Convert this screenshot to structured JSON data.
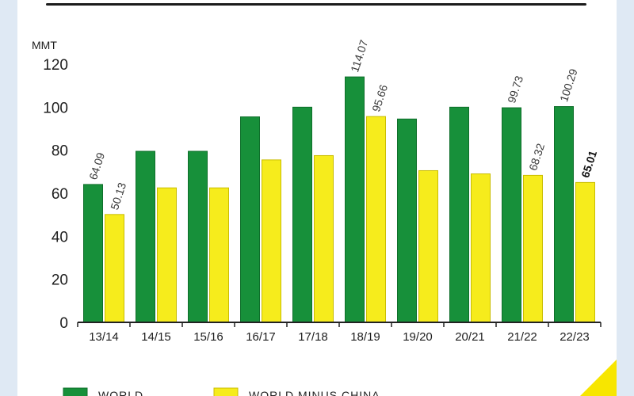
{
  "colors": {
    "series_green": "#17903a",
    "series_green_edge": "#0e6e2a",
    "series_yellow": "#f6ec1c",
    "series_yellow_edge": "#c9bd00",
    "axis": "#222222",
    "page_bg": "#dfe9f4",
    "accent_corner": "#f7e600"
  },
  "chart_data": {
    "type": "bar",
    "ylabel": "MMT",
    "ylim": [
      0,
      120
    ],
    "yticks": [
      0,
      20,
      40,
      60,
      80,
      100,
      120
    ],
    "categories": [
      "13/14",
      "14/15",
      "15/16",
      "16/17",
      "17/18",
      "18/19",
      "19/20",
      "20/21",
      "21/22",
      "22/23"
    ],
    "series": [
      {
        "values": [
          64.09,
          79.5,
          79.5,
          95.5,
          100.0,
          114.07,
          94.5,
          100.0,
          99.73,
          100.29
        ],
        "labels": [
          "64.09",
          "",
          "",
          "",
          "",
          "114.07",
          "",
          "",
          "99.73",
          "100.29"
        ]
      },
      {
        "values": [
          50.13,
          62.5,
          62.5,
          75.5,
          77.5,
          95.66,
          70.5,
          69.0,
          68.32,
          65.01
        ],
        "labels": [
          "50.13",
          "",
          "",
          "",
          "",
          "95.66",
          "",
          "",
          "68.32",
          "65.01"
        ]
      }
    ],
    "legend": [
      "WORLD",
      "WORLD MINUS CHINA"
    ],
    "legend_position": "bottom",
    "grid": false
  }
}
